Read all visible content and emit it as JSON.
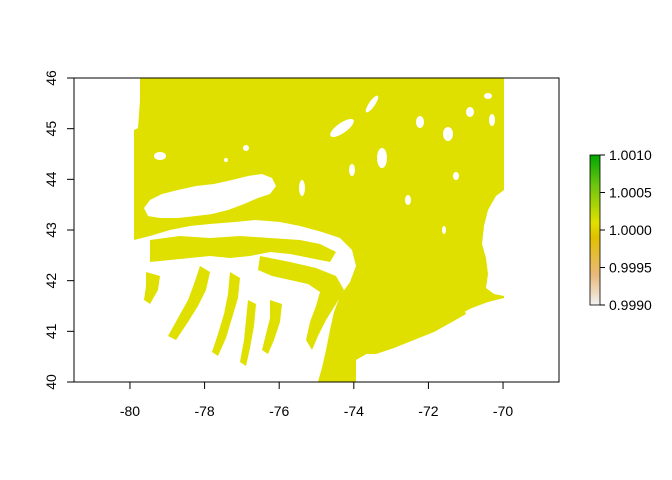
{
  "map": {
    "xlim": [
      -81.5,
      -68.5
    ],
    "ylim": [
      40,
      46
    ],
    "extent": {
      "xmin": -80,
      "xmax": -70,
      "ymin": 40,
      "ymax": 46
    },
    "x_ticks": [
      -80,
      -78,
      -76,
      -74,
      -72,
      -70
    ],
    "y_ticks": [
      40,
      41,
      42,
      43,
      44,
      45,
      46
    ],
    "x_tick_labels": [
      "-80",
      "-78",
      "-76",
      "-74",
      "-72",
      "-70"
    ],
    "y_tick_labels": [
      "40",
      "41",
      "42",
      "43",
      "44",
      "45",
      "46"
    ],
    "fill_color": "#E0E000",
    "background_color": "#ffffff"
  },
  "legend": {
    "labels": [
      "1.0010",
      "1.0005",
      "1.0000",
      "0.9995",
      "0.9990"
    ],
    "values": [
      1.001,
      1.0005,
      1.0,
      0.9995,
      0.999
    ],
    "range": [
      0.999,
      1.001
    ],
    "colors": [
      "#F2F2F2",
      "#E9B97C",
      "#E0C000",
      "#E0E000",
      "#6CC510",
      "#00A600"
    ]
  }
}
